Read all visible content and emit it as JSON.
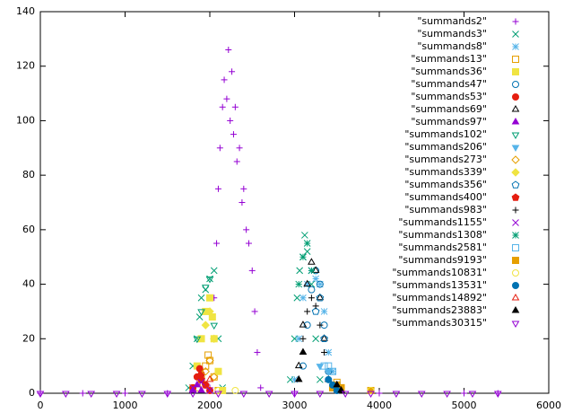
{
  "chart_data": {
    "type": "scatter",
    "xlim": [
      0,
      6000
    ],
    "xticks": [
      0,
      1000,
      2000,
      3000,
      4000,
      5000,
      6000
    ],
    "ylim": [
      0,
      140
    ],
    "yticks": [
      0,
      20,
      40,
      60,
      80,
      100,
      120,
      140
    ],
    "legend": "top-right",
    "series": [
      {
        "name": "\"summands2\"",
        "color": "#9400d3",
        "marker": "plus",
        "x": [
          0,
          500,
          1000,
          1500,
          2000,
          2050,
          2080,
          2100,
          2120,
          2150,
          2170,
          2200,
          2220,
          2240,
          2260,
          2280,
          2300,
          2320,
          2350,
          2380,
          2400,
          2430,
          2460,
          2500,
          2530,
          2560,
          2600,
          3000,
          4000,
          5000,
          5400
        ],
        "values": [
          0,
          0,
          0,
          0,
          2,
          35,
          55,
          75,
          90,
          105,
          115,
          108,
          126,
          100,
          118,
          95,
          105,
          85,
          90,
          70,
          75,
          60,
          55,
          45,
          30,
          15,
          2,
          0,
          0,
          0,
          0
        ]
      },
      {
        "name": "\"summands3\"",
        "color": "#009e73",
        "marker": "cross",
        "x": [
          1750,
          1800,
          1850,
          1880,
          1900,
          1950,
          2000,
          2050,
          2100,
          2150,
          2950,
          3000,
          3030,
          3060,
          3100,
          3120,
          3150,
          3200,
          3250,
          3300
        ],
        "values": [
          2,
          10,
          20,
          28,
          35,
          38,
          42,
          45,
          20,
          2,
          5,
          20,
          35,
          45,
          50,
          58,
          52,
          40,
          20,
          5
        ]
      },
      {
        "name": "\"summands8\"",
        "color": "#56b4e9",
        "marker": "star",
        "x": [
          3000,
          3050,
          3100,
          3150,
          3200,
          3250,
          3300,
          3350,
          3400,
          3450,
          3500
        ],
        "values": [
          5,
          20,
          35,
          40,
          45,
          42,
          40,
          30,
          15,
          8,
          2
        ]
      },
      {
        "name": "\"summands13\"",
        "color": "#e69f00",
        "marker": "square-open",
        "x": [
          1850,
          1900,
          1950,
          1980,
          2000,
          2050,
          2100,
          3450,
          3500,
          3550
        ],
        "values": [
          2,
          5,
          10,
          14,
          12,
          6,
          1,
          2,
          4,
          2
        ]
      },
      {
        "name": "\"summands36\"",
        "color": "#f0e442",
        "marker": "square",
        "x": [
          1800,
          1850,
          1900,
          1950,
          2000,
          2030,
          2050,
          2100,
          2150
        ],
        "values": [
          2,
          10,
          20,
          30,
          35,
          28,
          20,
          8,
          1
        ]
      },
      {
        "name": "\"summands47\"",
        "color": "#0072b2",
        "marker": "circle-open",
        "x": [
          3100,
          3150,
          3200,
          3250,
          3300,
          3350,
          3400
        ],
        "values": [
          10,
          25,
          38,
          45,
          40,
          25,
          8
        ]
      },
      {
        "name": "\"summands53\"",
        "color": "#e51e10",
        "marker": "circle",
        "x": [
          1800,
          1850,
          1880,
          1900,
          1950,
          2000
        ],
        "values": [
          2,
          6,
          9,
          7,
          3,
          1
        ]
      },
      {
        "name": "\"summands69\"",
        "color": "#000000",
        "marker": "triangle-open",
        "x": [
          3050,
          3100,
          3150,
          3200,
          3250,
          3300,
          3350,
          3400
        ],
        "values": [
          10,
          25,
          40,
          48,
          45,
          35,
          20,
          5
        ]
      },
      {
        "name": "\"summands97\"",
        "color": "#9400d3",
        "marker": "triangle",
        "x": [
          1800,
          1850,
          1900
        ],
        "values": [
          1,
          3,
          1
        ]
      },
      {
        "name": "\"summands102\"",
        "color": "#009e73",
        "marker": "inv-triangle-open",
        "x": [
          1850,
          1900,
          1950,
          2000,
          2050
        ],
        "values": [
          20,
          30,
          39,
          42,
          25
        ]
      },
      {
        "name": "\"summands206\"",
        "color": "#56b4e9",
        "marker": "inv-triangle",
        "x": [
          3300,
          3400,
          3500
        ],
        "values": [
          10,
          8,
          2
        ]
      },
      {
        "name": "\"summands273\"",
        "color": "#e69f00",
        "marker": "diamond-open",
        "x": [
          1950,
          2000,
          2050
        ],
        "values": [
          8,
          12,
          6
        ]
      },
      {
        "name": "\"summands339\"",
        "color": "#f0e442",
        "marker": "diamond",
        "x": [
          1950,
          2000,
          2050
        ],
        "values": [
          25,
          30,
          20
        ]
      },
      {
        "name": "\"summands356\"",
        "color": "#0072b2",
        "marker": "pentagon-open",
        "x": [
          3250,
          3300,
          3350
        ],
        "values": [
          30,
          35,
          20
        ]
      },
      {
        "name": "\"summands400\"",
        "color": "#e51e10",
        "marker": "pentagon",
        "x": [
          1900,
          1950
        ],
        "values": [
          5,
          3
        ]
      },
      {
        "name": "\"summands983\"",
        "color": "#000000",
        "marker": "plus",
        "x": [
          3100,
          3150,
          3200,
          3250,
          3300,
          3350
        ],
        "values": [
          20,
          30,
          35,
          32,
          25,
          15
        ]
      },
      {
        "name": "\"summands1155\"",
        "color": "#9400d3",
        "marker": "cross",
        "x": [
          1800,
          1900,
          2000
        ],
        "values": [
          2,
          4,
          1
        ]
      },
      {
        "name": "\"summands1308\"",
        "color": "#009e73",
        "marker": "star",
        "x": [
          3050,
          3100,
          3150,
          3200
        ],
        "values": [
          40,
          50,
          55,
          45
        ]
      },
      {
        "name": "\"summands2581\"",
        "color": "#56b4e9",
        "marker": "square-open",
        "x": [
          3350,
          3400,
          3450,
          3500
        ],
        "values": [
          10,
          10,
          8,
          3
        ]
      },
      {
        "name": "\"summands9193\"",
        "color": "#e69f00",
        "marker": "square",
        "x": [
          3450,
          3500,
          3550,
          3900
        ],
        "values": [
          2,
          3,
          2,
          1
        ]
      },
      {
        "name": "\"summands10831\"",
        "color": "#f0e442",
        "marker": "circle-open",
        "x": [
          2100,
          2300,
          3900
        ],
        "values": [
          1,
          1,
          1
        ]
      },
      {
        "name": "\"summands13531\"",
        "color": "#0072b2",
        "marker": "circle",
        "x": [
          3400,
          3450,
          3500
        ],
        "values": [
          5,
          3,
          1
        ]
      },
      {
        "name": "\"summands14892\"",
        "color": "#e51e10",
        "marker": "triangle-open",
        "x": [
          2000
        ],
        "values": [
          5
        ]
      },
      {
        "name": "\"summands23883\"",
        "color": "#000000",
        "marker": "triangle",
        "x": [
          3050,
          3100,
          3500,
          3550
        ],
        "values": [
          5,
          15,
          3,
          1
        ]
      },
      {
        "name": "\"summands30315\"",
        "color": "#9400d3",
        "marker": "inv-triangle-open",
        "x": [
          0,
          300,
          600,
          900,
          1200,
          1500,
          1800,
          2100,
          2400,
          2700,
          3000,
          3300,
          3600,
          3900,
          4200,
          4500,
          4800,
          5100,
          5400
        ],
        "values": [
          0,
          0,
          0,
          0,
          0,
          0,
          0,
          0,
          0,
          0,
          0,
          0,
          0,
          0,
          0,
          0,
          0,
          0,
          0
        ]
      }
    ]
  }
}
